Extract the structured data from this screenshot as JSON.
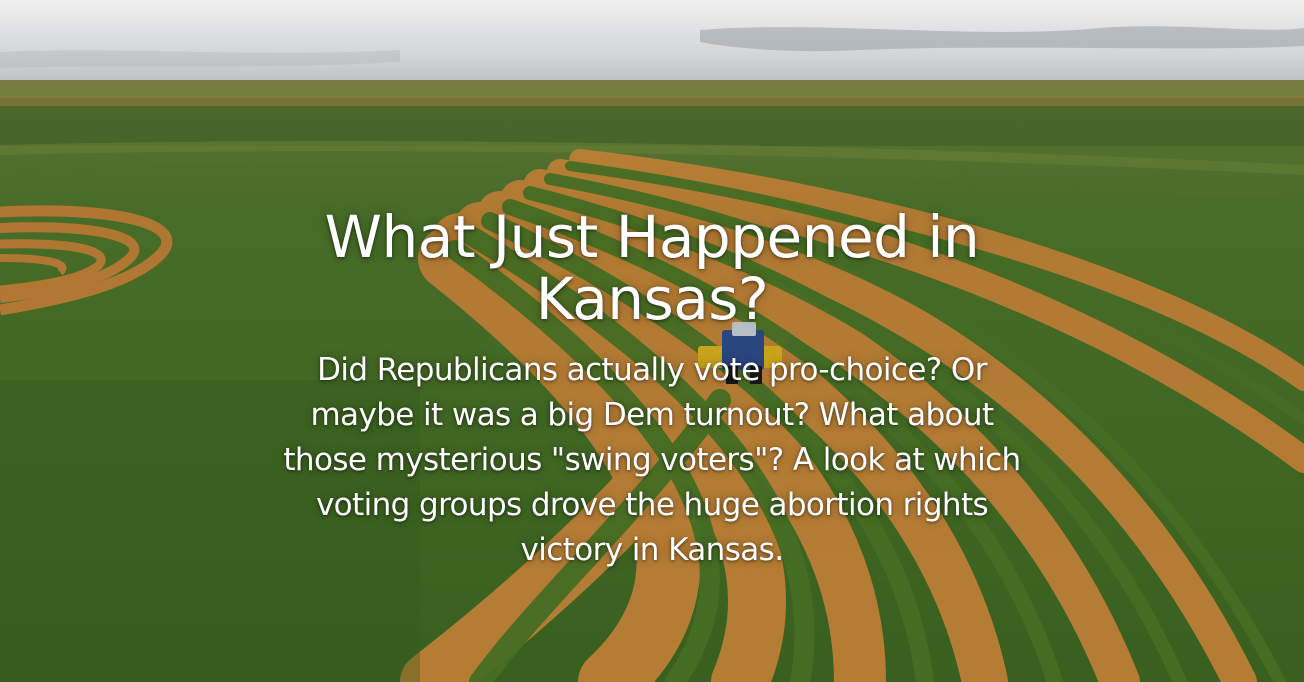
{
  "hero": {
    "title": "What Just Happened in Kansas?",
    "subtitle": "Did Republicans actually vote pro-choice? Or maybe it was a big Dem turnout?  What about those mysterious \"swing voters\"?  A look at which voting groups drove the huge abortion rights victory in Kansas.",
    "background_scene": "farm-field-with-tractor-photo"
  },
  "colors": {
    "text": "#ffffff",
    "sky": "#cfd2d4",
    "crop_green": "#4f7a2c",
    "soil_orange": "#c98a3a",
    "tractor_blue": "#2f4f8f",
    "implement_yellow": "#e2b81e"
  }
}
